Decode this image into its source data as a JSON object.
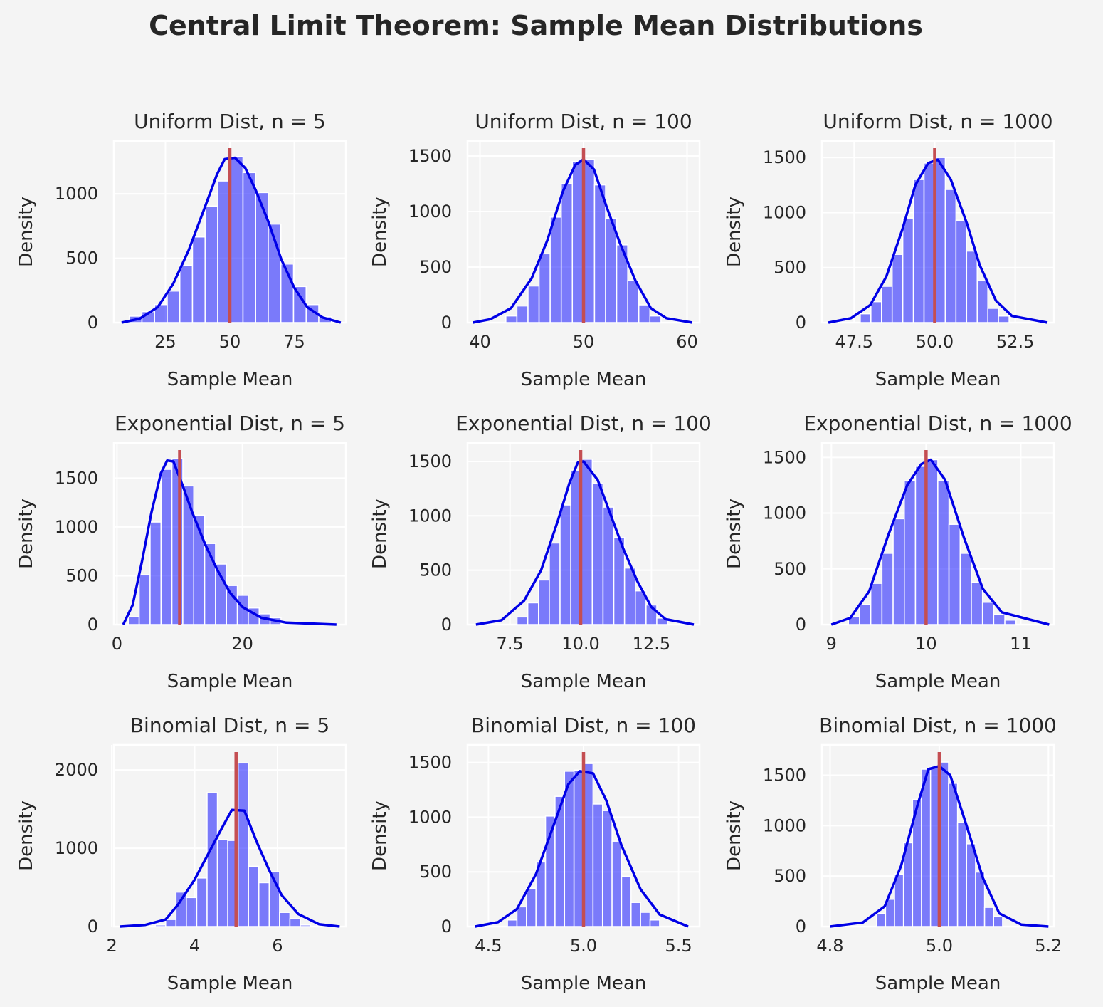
{
  "title": "Central Limit Theorem: Sample Mean Distributions",
  "colors": {
    "bar": "#0000ff",
    "kde": "#0000e6",
    "mean_line": "#c44e52",
    "panel_bg": "#f4f4f4",
    "grid": "#ffffff"
  },
  "chart_data": [
    {
      "type": "histogram",
      "title": "Uniform Dist, n = 5",
      "xlabel": "Sample Mean",
      "ylabel": "Density",
      "xlim": [
        5,
        95
      ],
      "ylim": [
        0,
        1410
      ],
      "xticks": [
        "25",
        "50",
        "75"
      ],
      "xtick_values": [
        25,
        50,
        75
      ],
      "yticks": [
        "0",
        "500",
        "1000"
      ],
      "ytick_values": [
        0,
        500,
        1000
      ],
      "bin_width": 4.9,
      "mean": 50,
      "bins": [
        [
          11,
          50
        ],
        [
          15.9,
          85
        ],
        [
          20.8,
          140
        ],
        [
          25.7,
          245
        ],
        [
          30.6,
          445
        ],
        [
          35.5,
          665
        ],
        [
          40.4,
          905
        ],
        [
          45.3,
          1100
        ],
        [
          50.2,
          1290
        ],
        [
          55.1,
          1165
        ],
        [
          60,
          1010
        ],
        [
          64.9,
          765
        ],
        [
          69.8,
          455
        ],
        [
          74.7,
          280
        ],
        [
          79.6,
          140
        ],
        [
          84.5,
          45
        ]
      ],
      "kde": [
        [
          8,
          0
        ],
        [
          15,
          30
        ],
        [
          22,
          120
        ],
        [
          28,
          300
        ],
        [
          34,
          560
        ],
        [
          40,
          880
        ],
        [
          45,
          1150
        ],
        [
          48,
          1270
        ],
        [
          52,
          1280
        ],
        [
          56,
          1200
        ],
        [
          60,
          1030
        ],
        [
          65,
          780
        ],
        [
          70,
          490
        ],
        [
          75,
          270
        ],
        [
          80,
          120
        ],
        [
          86,
          40
        ],
        [
          93,
          0
        ]
      ]
    },
    {
      "type": "histogram",
      "title": "Uniform Dist, n = 100",
      "xlabel": "Sample Mean",
      "ylabel": "Density",
      "xlim": [
        38.8,
        61.2
      ],
      "ylim": [
        0,
        1635
      ],
      "xticks": [
        "40",
        "50",
        "60"
      ],
      "xtick_values": [
        40,
        50,
        60
      ],
      "yticks": [
        "0",
        "500",
        "1000",
        "1500"
      ],
      "ytick_values": [
        0,
        500,
        1000,
        1500
      ],
      "bin_width": 1.07,
      "mean": 50,
      "bins": [
        [
          42.5,
          60
        ],
        [
          43.57,
          150
        ],
        [
          44.64,
          330
        ],
        [
          45.71,
          620
        ],
        [
          46.78,
          950
        ],
        [
          47.85,
          1250
        ],
        [
          48.92,
          1450
        ],
        [
          49.99,
          1470
        ],
        [
          51.06,
          1240
        ],
        [
          52.13,
          940
        ],
        [
          53.2,
          700
        ],
        [
          54.27,
          380
        ],
        [
          55.34,
          160
        ],
        [
          56.41,
          60
        ]
      ],
      "kde": [
        [
          39.3,
          0
        ],
        [
          41,
          30
        ],
        [
          43,
          130
        ],
        [
          45,
          400
        ],
        [
          46.5,
          740
        ],
        [
          48,
          1180
        ],
        [
          49.2,
          1420
        ],
        [
          50,
          1470
        ],
        [
          51,
          1380
        ],
        [
          52.2,
          1050
        ],
        [
          53.5,
          720
        ],
        [
          55,
          380
        ],
        [
          56.5,
          130
        ],
        [
          58,
          40
        ],
        [
          60.5,
          0
        ]
      ]
    },
    {
      "type": "histogram",
      "title": "Uniform Dist, n = 1000",
      "xlabel": "Sample Mean",
      "ylabel": "Density",
      "xlim": [
        46.5,
        53.7
      ],
      "ylim": [
        0,
        1650
      ],
      "xticks": [
        "47.5",
        "50.0",
        "52.5"
      ],
      "xtick_values": [
        47.5,
        50.0,
        52.5
      ],
      "yticks": [
        "0",
        "500",
        "1000",
        "1500"
      ],
      "ytick_values": [
        0,
        500,
        1000,
        1500
      ],
      "bin_width": 0.33,
      "mean": 50,
      "bins": [
        [
          47.69,
          80
        ],
        [
          48.02,
          190
        ],
        [
          48.35,
          330
        ],
        [
          48.68,
          620
        ],
        [
          49.01,
          950
        ],
        [
          49.34,
          1300
        ],
        [
          49.67,
          1450
        ],
        [
          50,
          1500
        ],
        [
          50.33,
          1210
        ],
        [
          50.66,
          930
        ],
        [
          50.99,
          650
        ],
        [
          51.32,
          380
        ],
        [
          51.65,
          130
        ],
        [
          51.98,
          60
        ]
      ],
      "kde": [
        [
          46.7,
          0
        ],
        [
          47.4,
          40
        ],
        [
          48,
          160
        ],
        [
          48.5,
          420
        ],
        [
          49,
          850
        ],
        [
          49.4,
          1250
        ],
        [
          49.8,
          1450
        ],
        [
          50.1,
          1480
        ],
        [
          50.5,
          1300
        ],
        [
          51,
          900
        ],
        [
          51.4,
          520
        ],
        [
          51.9,
          200
        ],
        [
          52.4,
          60
        ],
        [
          53.5,
          0
        ]
      ]
    },
    {
      "type": "histogram",
      "title": "Exponential Dist, n = 5",
      "xlabel": "Sample Mean",
      "ylabel": "Density",
      "xlim": [
        -0.5,
        36.5
      ],
      "ylim": [
        0,
        1860
      ],
      "xticks": [
        "0",
        "20"
      ],
      "xtick_values": [
        0,
        20
      ],
      "yticks": [
        "0",
        "500",
        "1000",
        "1500"
      ],
      "ytick_values": [
        0,
        500,
        1000,
        1500
      ],
      "bin_width": 1.74,
      "mean": 10,
      "bins": [
        [
          1.8,
          80
        ],
        [
          3.54,
          510
        ],
        [
          5.28,
          1050
        ],
        [
          7.02,
          1590
        ],
        [
          8.76,
          1700
        ],
        [
          10.5,
          1420
        ],
        [
          12.24,
          1120
        ],
        [
          13.98,
          830
        ],
        [
          15.72,
          620
        ],
        [
          17.46,
          400
        ],
        [
          19.2,
          300
        ],
        [
          20.94,
          170
        ],
        [
          22.68,
          110
        ],
        [
          24.42,
          70
        ]
      ],
      "kde": [
        [
          1,
          0
        ],
        [
          2.5,
          200
        ],
        [
          4,
          650
        ],
        [
          5.5,
          1150
        ],
        [
          7,
          1550
        ],
        [
          8,
          1680
        ],
        [
          9,
          1670
        ],
        [
          10.5,
          1420
        ],
        [
          12,
          1150
        ],
        [
          14,
          830
        ],
        [
          16,
          560
        ],
        [
          18,
          330
        ],
        [
          20,
          180
        ],
        [
          23,
          70
        ],
        [
          27,
          20
        ],
        [
          35,
          0
        ]
      ]
    },
    {
      "type": "histogram",
      "title": "Exponential Dist, n = 100",
      "xlabel": "Sample Mean",
      "ylabel": "Density",
      "xlim": [
        6,
        14.2
      ],
      "ylim": [
        0,
        1670
      ],
      "xticks": [
        "7.5",
        "10.0",
        "12.5"
      ],
      "xtick_values": [
        7.5,
        10.0,
        12.5
      ],
      "yticks": [
        "0",
        "500",
        "1000",
        "1500"
      ],
      "ytick_values": [
        0,
        500,
        1000,
        1500
      ],
      "bin_width": 0.38,
      "mean": 10,
      "bins": [
        [
          7.75,
          70
        ],
        [
          8.13,
          200
        ],
        [
          8.51,
          410
        ],
        [
          8.89,
          750
        ],
        [
          9.27,
          1100
        ],
        [
          9.65,
          1420
        ],
        [
          10.03,
          1520
        ],
        [
          10.41,
          1300
        ],
        [
          10.79,
          1080
        ],
        [
          11.17,
          800
        ],
        [
          11.55,
          520
        ],
        [
          11.93,
          310
        ],
        [
          12.31,
          180
        ],
        [
          12.69,
          60
        ]
      ],
      "kde": [
        [
          6.3,
          0
        ],
        [
          7.2,
          40
        ],
        [
          8,
          220
        ],
        [
          8.6,
          500
        ],
        [
          9.2,
          960
        ],
        [
          9.6,
          1300
        ],
        [
          9.9,
          1490
        ],
        [
          10.1,
          1500
        ],
        [
          10.6,
          1330
        ],
        [
          11,
          1050
        ],
        [
          11.5,
          700
        ],
        [
          12,
          400
        ],
        [
          12.5,
          160
        ],
        [
          13,
          50
        ],
        [
          14,
          0
        ]
      ]
    },
    {
      "type": "histogram",
      "title": "Exponential Dist, n = 1000",
      "xlabel": "Sample Mean",
      "ylabel": "Density",
      "xlim": [
        8.9,
        11.35
      ],
      "ylim": [
        0,
        1630
      ],
      "xticks": [
        "9",
        "10",
        "11"
      ],
      "xtick_values": [
        9,
        10,
        11
      ],
      "yticks": [
        "0",
        "500",
        "1000",
        "1500"
      ],
      "ytick_values": [
        0,
        500,
        1000,
        1500
      ],
      "bin_width": 0.118,
      "mean": 10,
      "bins": [
        [
          9.18,
          70
        ],
        [
          9.298,
          180
        ],
        [
          9.416,
          370
        ],
        [
          9.534,
          640
        ],
        [
          9.652,
          950
        ],
        [
          9.77,
          1290
        ],
        [
          9.888,
          1420
        ],
        [
          10.006,
          1480
        ],
        [
          10.124,
          1290
        ],
        [
          10.242,
          900
        ],
        [
          10.36,
          640
        ],
        [
          10.478,
          380
        ],
        [
          10.596,
          200
        ],
        [
          10.714,
          90
        ],
        [
          10.832,
          40
        ]
      ],
      "kde": [
        [
          9,
          0
        ],
        [
          9.2,
          60
        ],
        [
          9.4,
          300
        ],
        [
          9.6,
          800
        ],
        [
          9.8,
          1250
        ],
        [
          9.95,
          1440
        ],
        [
          10.05,
          1480
        ],
        [
          10.2,
          1300
        ],
        [
          10.4,
          780
        ],
        [
          10.6,
          320
        ],
        [
          10.8,
          110
        ],
        [
          11.3,
          0
        ]
      ]
    },
    {
      "type": "histogram",
      "title": "Binomial Dist, n = 5",
      "xlabel": "Sample Mean",
      "ylabel": "Density",
      "xlim": [
        2.05,
        7.65
      ],
      "ylim": [
        0,
        2320
      ],
      "xticks": [
        "2",
        "4",
        "6"
      ],
      "xtick_values": [
        2,
        4,
        6
      ],
      "yticks": [
        "0",
        "1000",
        "2000"
      ],
      "ytick_values": [
        0,
        1000,
        2000
      ],
      "bin_width": 0.25,
      "mean": 5,
      "bins": [
        [
          3.05,
          20
        ],
        [
          3.3,
          90
        ],
        [
          3.55,
          440
        ],
        [
          3.8,
          370
        ],
        [
          4.05,
          620
        ],
        [
          4.3,
          1710
        ],
        [
          4.55,
          1110
        ],
        [
          4.8,
          1100
        ],
        [
          5.05,
          2090
        ],
        [
          5.3,
          770
        ],
        [
          5.55,
          560
        ],
        [
          5.8,
          700
        ],
        [
          6.05,
          180
        ],
        [
          6.3,
          100
        ],
        [
          6.55,
          20
        ]
      ],
      "kde": [
        [
          2.2,
          0
        ],
        [
          2.8,
          20
        ],
        [
          3.3,
          90
        ],
        [
          3.6,
          280
        ],
        [
          4,
          600
        ],
        [
          4.4,
          1000
        ],
        [
          4.7,
          1300
        ],
        [
          4.9,
          1490
        ],
        [
          5.2,
          1480
        ],
        [
          5.5,
          1080
        ],
        [
          5.8,
          720
        ],
        [
          6.1,
          400
        ],
        [
          6.5,
          160
        ],
        [
          7,
          30
        ],
        [
          7.5,
          0
        ]
      ]
    },
    {
      "type": "histogram",
      "title": "Binomial Dist, n = 100",
      "xlabel": "Sample Mean",
      "ylabel": "Density",
      "xlim": [
        4.39,
        5.61
      ],
      "ylim": [
        0,
        1660
      ],
      "xticks": [
        "4.5",
        "5.0",
        "5.5"
      ],
      "xtick_values": [
        4.5,
        5.0,
        5.5
      ],
      "yticks": [
        "0",
        "500",
        "1000",
        "1500"
      ],
      "ytick_values": [
        0,
        500,
        1000,
        1500
      ],
      "bin_width": 0.05,
      "mean": 5,
      "bins": [
        [
          4.6,
          60
        ],
        [
          4.65,
          180
        ],
        [
          4.7,
          350
        ],
        [
          4.75,
          590
        ],
        [
          4.8,
          1010
        ],
        [
          4.85,
          1190
        ],
        [
          4.9,
          1420
        ],
        [
          4.95,
          1430
        ],
        [
          5,
          1490
        ],
        [
          5.05,
          1120
        ],
        [
          5.1,
          1060
        ],
        [
          5.15,
          780
        ],
        [
          5.2,
          460
        ],
        [
          5.25,
          220
        ],
        [
          5.3,
          130
        ],
        [
          5.35,
          60
        ]
      ],
      "kde": [
        [
          4.43,
          0
        ],
        [
          4.55,
          40
        ],
        [
          4.65,
          160
        ],
        [
          4.75,
          480
        ],
        [
          4.85,
          960
        ],
        [
          4.92,
          1300
        ],
        [
          4.98,
          1420
        ],
        [
          5.05,
          1400
        ],
        [
          5.12,
          1150
        ],
        [
          5.2,
          740
        ],
        [
          5.3,
          340
        ],
        [
          5.4,
          110
        ],
        [
          5.55,
          0
        ]
      ]
    },
    {
      "type": "histogram",
      "title": "Binomial Dist, n = 1000",
      "xlabel": "Sample Mean",
      "ylabel": "Density",
      "xlim": [
        4.785,
        5.21
      ],
      "ylim": [
        0,
        1800
      ],
      "xticks": [
        "4.8",
        "5.0",
        "5.2"
      ],
      "xtick_values": [
        4.8,
        5.0,
        5.2
      ],
      "yticks": [
        "0",
        "500",
        "1000",
        "1500"
      ],
      "ytick_values": [
        0,
        500,
        1000,
        1500
      ],
      "bin_width": 0.0165,
      "mean": 5,
      "bins": [
        [
          4.885,
          130
        ],
        [
          4.9015,
          270
        ],
        [
          4.918,
          520
        ],
        [
          4.9345,
          830
        ],
        [
          4.951,
          1260
        ],
        [
          4.9675,
          1560
        ],
        [
          4.984,
          1580
        ],
        [
          5.0005,
          1630
        ],
        [
          5.017,
          1420
        ],
        [
          5.0335,
          1030
        ],
        [
          5.05,
          820
        ],
        [
          5.0665,
          540
        ],
        [
          5.083,
          190
        ],
        [
          5.0995,
          100
        ]
      ],
      "kde": [
        [
          4.8,
          0
        ],
        [
          4.86,
          40
        ],
        [
          4.9,
          200
        ],
        [
          4.93,
          600
        ],
        [
          4.96,
          1200
        ],
        [
          4.98,
          1560
        ],
        [
          5,
          1590
        ],
        [
          5.02,
          1500
        ],
        [
          5.05,
          1000
        ],
        [
          5.08,
          480
        ],
        [
          5.11,
          130
        ],
        [
          5.15,
          20
        ],
        [
          5.2,
          0
        ]
      ]
    }
  ]
}
